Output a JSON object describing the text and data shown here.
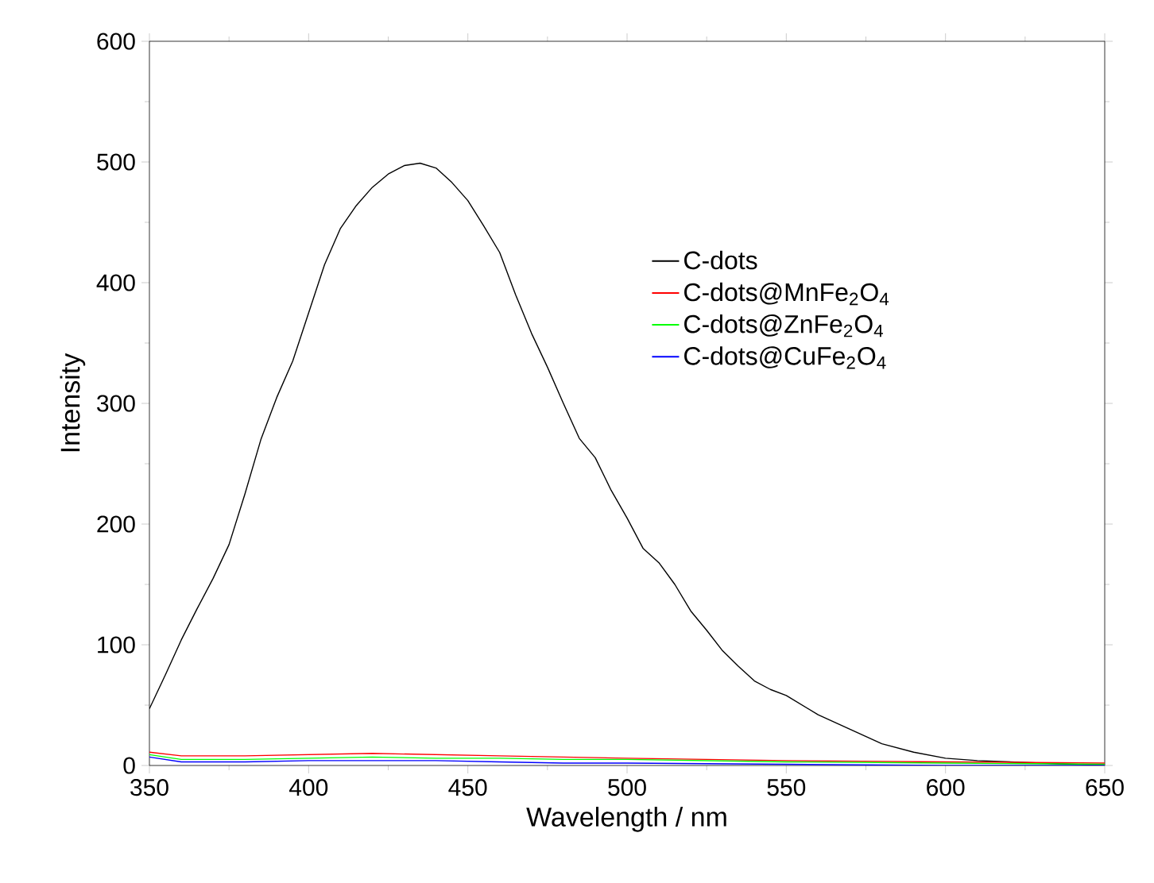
{
  "chart_data": {
    "type": "line",
    "xlabel": "Wavelength / nm",
    "ylabel": "Intensity",
    "xlim": [
      350,
      650
    ],
    "ylim": [
      0,
      600
    ],
    "xticks": [
      350,
      400,
      450,
      500,
      550,
      600,
      650
    ],
    "yticks": [
      0,
      100,
      200,
      300,
      400,
      500,
      600
    ],
    "legend": "right",
    "grid": false,
    "marker": "none",
    "line_style": "solid",
    "series": [
      {
        "name": "C-dots",
        "color": "#000000",
        "x": [
          350,
          355,
          360,
          365,
          370,
          375,
          380,
          385,
          390,
          395,
          400,
          405,
          410,
          415,
          420,
          425,
          430,
          435,
          440,
          445,
          450,
          455,
          460,
          465,
          470,
          475,
          480,
          485,
          490,
          495,
          500,
          505,
          510,
          515,
          520,
          525,
          530,
          535,
          540,
          545,
          550,
          560,
          570,
          580,
          590,
          600,
          610,
          620,
          635,
          650
        ],
        "values": [
          47,
          75,
          104,
          130,
          155,
          183,
          225,
          270,
          305,
          335,
          375,
          415,
          445,
          464,
          479,
          490,
          497,
          499,
          495,
          483,
          468,
          447,
          425,
          390,
          358,
          330,
          300,
          271,
          255,
          228,
          205,
          180,
          168,
          150,
          128,
          112,
          95,
          82,
          70,
          63,
          58,
          42,
          30,
          18,
          11,
          6,
          4,
          null,
          null,
          0
        ]
      },
      {
        "name": "C-dots@MnFe$_{2}$O$_{4}$",
        "color": "#ff0000",
        "x": [
          350,
          360,
          380,
          400,
          420,
          440,
          460,
          480,
          500,
          550,
          600,
          650
        ],
        "values": [
          11,
          8,
          8,
          9,
          10,
          9,
          8,
          7,
          6,
          4,
          3,
          2
        ]
      },
      {
        "name": "C-dots@ZnFe$_{2}$O$_{4}$",
        "color": "#00ff00",
        "x": [
          350,
          360,
          380,
          400,
          420,
          440,
          460,
          480,
          500,
          550,
          600,
          650
        ],
        "values": [
          9,
          5,
          5,
          6,
          7,
          6,
          6,
          5,
          5,
          3,
          2,
          1
        ]
      },
      {
        "name": "C-dots@CuFe$_{2}$O$_{4}$",
        "color": "#0000ff",
        "x": [
          350,
          360,
          380,
          400,
          420,
          440,
          460,
          480,
          500,
          550,
          600,
          650
        ],
        "values": [
          7,
          3,
          3,
          4,
          4,
          4,
          3,
          2,
          2,
          1,
          0,
          0
        ]
      }
    ]
  }
}
